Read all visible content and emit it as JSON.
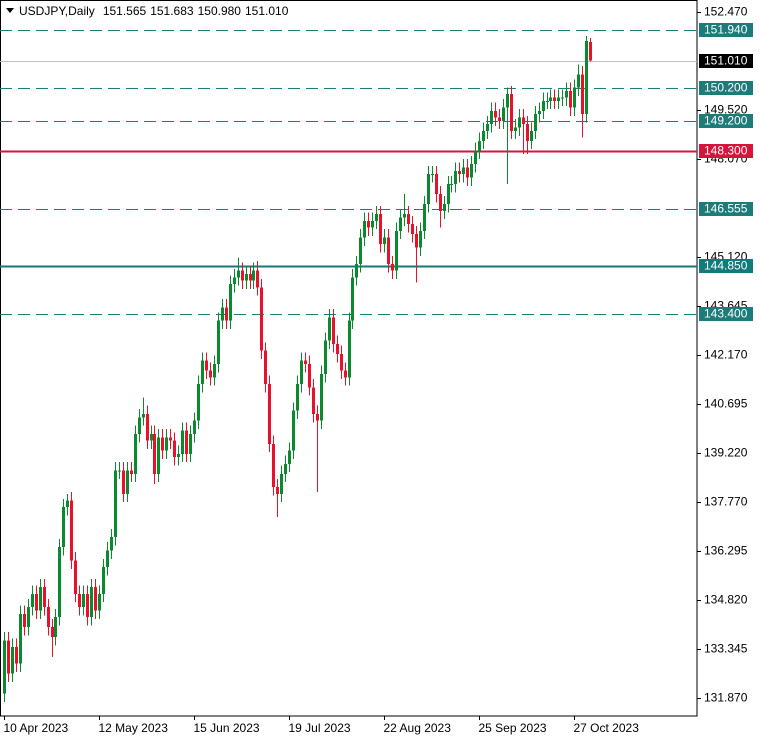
{
  "chart_data": {
    "type": "candlestick",
    "title": "USDJPY,Daily",
    "last_bar_labels": [
      "151.565",
      "151.683",
      "150.980",
      "151.010"
    ],
    "up_color": "#0a8a2e",
    "down_color": "#e8102a",
    "ylim": [
      131.33,
      152.83
    ],
    "yticks": [
      {
        "value": 152.47,
        "label": "152.470"
      },
      {
        "value": 149.52,
        "label": "149.520"
      },
      {
        "value": 148.07,
        "label": "148.070"
      },
      {
        "value": 145.12,
        "label": "145.120"
      },
      {
        "value": 143.645,
        "label": "143.645"
      },
      {
        "value": 142.17,
        "label": "142.170"
      },
      {
        "value": 140.695,
        "label": "140.695"
      },
      {
        "value": 139.22,
        "label": "139.220"
      },
      {
        "value": 137.77,
        "label": "137.770"
      },
      {
        "value": 136.295,
        "label": "136.295"
      },
      {
        "value": 134.82,
        "label": "134.820"
      },
      {
        "value": 133.345,
        "label": "133.345"
      },
      {
        "value": 131.87,
        "label": "131.870"
      }
    ],
    "levels": [
      {
        "value": 151.94,
        "label": "151.940",
        "style": "dashed",
        "color": "#1c7c7a"
      },
      {
        "value": 151.01,
        "label": "151.010",
        "style": "price",
        "color": "#000000"
      },
      {
        "value": 150.2,
        "label": "150.200",
        "style": "dashed",
        "color": "#1c7c7a"
      },
      {
        "value": 149.2,
        "label": "149.200",
        "style": "dashed",
        "color": "#1c7c7a"
      },
      {
        "value": 148.3,
        "label": "148.300",
        "style": "solid",
        "color": "#d4163c"
      },
      {
        "value": 146.555,
        "label": "146.555",
        "style": "dashed",
        "color": "#1c7c7a"
      },
      {
        "value": 144.85,
        "label": "144.850",
        "style": "solid",
        "color": "#117a7a"
      },
      {
        "value": 143.4,
        "label": "143.400",
        "style": "dashed",
        "color": "#1c7c7a"
      }
    ],
    "categories": [
      "10 Apr 2023",
      null,
      null,
      null,
      null,
      null,
      null,
      null,
      null,
      null,
      null,
      null,
      null,
      null,
      null,
      null,
      null,
      null,
      null,
      null,
      null,
      null,
      null,
      null,
      "12 May 2023",
      null,
      null,
      null,
      null,
      null,
      null,
      null,
      null,
      null,
      null,
      null,
      null,
      null,
      null,
      null,
      null,
      null,
      null,
      null,
      null,
      null,
      null,
      null,
      "15 Jun 2023",
      null,
      null,
      null,
      null,
      null,
      null,
      null,
      null,
      null,
      null,
      null,
      null,
      null,
      null,
      null,
      null,
      null,
      null,
      null,
      null,
      null,
      null,
      null,
      "19 Jul 2023",
      null,
      null,
      null,
      null,
      null,
      null,
      null,
      null,
      null,
      null,
      null,
      null,
      null,
      null,
      null,
      null,
      null,
      null,
      null,
      null,
      null,
      null,
      null,
      "22 Aug 2023",
      null,
      null,
      null,
      null,
      null,
      null,
      null,
      null,
      null,
      null,
      null,
      null,
      null,
      null,
      null,
      null,
      null,
      null,
      null,
      null,
      null,
      null,
      null,
      "25 Sep 2023",
      null,
      null,
      null,
      null,
      null,
      null,
      null,
      null,
      null,
      null,
      null,
      null,
      null,
      null,
      null,
      null,
      null,
      null,
      null,
      null,
      null,
      null,
      null,
      "27 Oct 2023",
      null,
      null,
      null,
      null
    ],
    "ohlc": [
      [
        132.0,
        133.85,
        131.75,
        133.6
      ],
      [
        133.6,
        133.85,
        132.35,
        132.6
      ],
      [
        132.6,
        133.65,
        132.35,
        133.4
      ],
      [
        133.4,
        133.65,
        132.65,
        132.9
      ],
      [
        132.9,
        134.65,
        132.65,
        134.4
      ],
      [
        134.4,
        134.65,
        133.75,
        134.0
      ],
      [
        134.0,
        134.85,
        133.75,
        134.6
      ],
      [
        134.6,
        135.25,
        134.35,
        135.0
      ],
      [
        135.0,
        135.25,
        134.25,
        134.5
      ],
      [
        134.5,
        135.45,
        134.25,
        135.2
      ],
      [
        135.2,
        135.45,
        134.35,
        134.6
      ],
      [
        134.6,
        134.85,
        133.75,
        134.0
      ],
      [
        134.0,
        134.25,
        133.1,
        133.7
      ],
      [
        133.7,
        134.55,
        133.45,
        134.3
      ],
      [
        134.3,
        136.65,
        134.05,
        136.4
      ],
      [
        136.4,
        137.85,
        136.15,
        137.6
      ],
      [
        137.6,
        138.0,
        137.35,
        137.8
      ],
      [
        137.8,
        138.05,
        135.75,
        136.0
      ],
      [
        136.0,
        136.25,
        134.75,
        135.0
      ],
      [
        135.0,
        135.25,
        134.35,
        134.6
      ],
      [
        134.6,
        135.25,
        134.35,
        135.0
      ],
      [
        135.0,
        135.25,
        134.05,
        134.3
      ],
      [
        134.3,
        135.45,
        134.05,
        135.2
      ],
      [
        135.2,
        135.45,
        134.25,
        134.5
      ],
      [
        134.5,
        135.25,
        134.25,
        135.0
      ],
      [
        135.0,
        136.05,
        134.75,
        135.8
      ],
      [
        135.8,
        136.55,
        135.55,
        136.3
      ],
      [
        136.3,
        136.95,
        136.05,
        136.7
      ],
      [
        136.7,
        138.95,
        136.45,
        138.7
      ],
      [
        138.7,
        138.95,
        138.45,
        138.7
      ],
      [
        138.7,
        138.95,
        137.75,
        138.0
      ],
      [
        138.0,
        138.95,
        137.75,
        138.7
      ],
      [
        138.7,
        138.95,
        138.35,
        138.6
      ],
      [
        138.6,
        140.05,
        138.35,
        139.8
      ],
      [
        139.8,
        140.55,
        139.55,
        140.3
      ],
      [
        140.3,
        140.9,
        140.05,
        140.4
      ],
      [
        140.4,
        140.65,
        139.35,
        139.6
      ],
      [
        139.6,
        140.05,
        139.35,
        139.8
      ],
      [
        139.8,
        140.05,
        138.3,
        138.6
      ],
      [
        138.6,
        139.95,
        138.35,
        139.7
      ],
      [
        139.7,
        139.95,
        139.05,
        139.3
      ],
      [
        139.3,
        139.95,
        139.05,
        139.7
      ],
      [
        139.7,
        139.95,
        139.35,
        139.6
      ],
      [
        139.6,
        139.85,
        138.85,
        139.1
      ],
      [
        139.1,
        139.45,
        138.85,
        139.2
      ],
      [
        139.2,
        140.15,
        138.95,
        139.9
      ],
      [
        139.9,
        140.15,
        138.95,
        139.2
      ],
      [
        139.2,
        140.05,
        138.95,
        139.8
      ],
      [
        139.8,
        140.45,
        139.55,
        140.2
      ],
      [
        140.2,
        141.55,
        139.95,
        141.3
      ],
      [
        141.3,
        142.25,
        141.05,
        142.0
      ],
      [
        142.0,
        142.25,
        141.45,
        141.7
      ],
      [
        141.7,
        141.95,
        141.25,
        141.5
      ],
      [
        141.5,
        142.15,
        141.25,
        141.9
      ],
      [
        141.9,
        143.45,
        141.65,
        143.2
      ],
      [
        143.2,
        143.85,
        142.95,
        143.6
      ],
      [
        143.6,
        143.85,
        142.95,
        143.2
      ],
      [
        143.2,
        144.55,
        142.95,
        144.3
      ],
      [
        144.3,
        144.75,
        144.05,
        144.5
      ],
      [
        144.5,
        145.1,
        144.25,
        144.7
      ],
      [
        144.7,
        144.95,
        144.15,
        144.4
      ],
      [
        144.4,
        144.85,
        144.15,
        144.6
      ],
      [
        144.6,
        144.85,
        144.15,
        144.4
      ],
      [
        144.4,
        144.95,
        144.15,
        144.7
      ],
      [
        144.7,
        145.0,
        143.95,
        144.2
      ],
      [
        144.2,
        144.45,
        142.05,
        142.3
      ],
      [
        142.3,
        142.55,
        141.05,
        141.3
      ],
      [
        141.3,
        141.55,
        139.25,
        139.5
      ],
      [
        139.5,
        139.75,
        137.95,
        138.2
      ],
      [
        138.2,
        138.45,
        137.3,
        138.0
      ],
      [
        138.0,
        138.85,
        137.75,
        138.6
      ],
      [
        138.6,
        139.15,
        138.35,
        138.9
      ],
      [
        138.9,
        139.55,
        138.65,
        139.3
      ],
      [
        139.3,
        140.75,
        139.05,
        140.5
      ],
      [
        140.5,
        141.55,
        140.25,
        141.3
      ],
      [
        141.3,
        142.25,
        141.05,
        142.0
      ],
      [
        142.0,
        142.25,
        141.65,
        141.9
      ],
      [
        141.9,
        142.15,
        140.95,
        141.2
      ],
      [
        141.2,
        141.45,
        140.15,
        140.4
      ],
      [
        140.4,
        140.65,
        138.05,
        140.2
      ],
      [
        140.2,
        141.85,
        139.95,
        141.6
      ],
      [
        141.6,
        142.85,
        141.35,
        142.6
      ],
      [
        142.6,
        143.55,
        142.35,
        143.3
      ],
      [
        143.3,
        143.55,
        142.25,
        142.5
      ],
      [
        142.5,
        142.75,
        141.95,
        142.2
      ],
      [
        142.2,
        142.45,
        141.45,
        141.7
      ],
      [
        141.7,
        141.95,
        141.25,
        141.5
      ],
      [
        141.5,
        143.45,
        141.25,
        143.2
      ],
      [
        143.2,
        144.75,
        142.95,
        144.5
      ],
      [
        144.5,
        145.15,
        144.25,
        144.9
      ],
      [
        144.9,
        145.95,
        144.65,
        145.7
      ],
      [
        145.7,
        146.45,
        145.45,
        146.2
      ],
      [
        146.2,
        146.45,
        145.75,
        146.0
      ],
      [
        146.0,
        146.45,
        145.75,
        146.2
      ],
      [
        146.2,
        146.65,
        145.95,
        146.4
      ],
      [
        146.4,
        146.65,
        145.25,
        145.5
      ],
      [
        145.5,
        145.95,
        145.25,
        145.7
      ],
      [
        145.7,
        145.95,
        144.65,
        144.9
      ],
      [
        144.9,
        145.15,
        144.45,
        144.7
      ],
      [
        144.7,
        146.15,
        144.45,
        145.9
      ],
      [
        145.9,
        146.55,
        145.65,
        146.3
      ],
      [
        146.3,
        147.0,
        146.05,
        146.4
      ],
      [
        146.4,
        146.65,
        145.85,
        146.1
      ],
      [
        146.1,
        146.35,
        145.55,
        145.8
      ],
      [
        145.8,
        146.05,
        144.35,
        145.4
      ],
      [
        145.4,
        146.15,
        145.15,
        145.9
      ],
      [
        145.9,
        146.95,
        145.65,
        146.7
      ],
      [
        146.7,
        147.85,
        146.45,
        147.6
      ],
      [
        147.6,
        147.85,
        147.35,
        147.6
      ],
      [
        147.6,
        147.85,
        146.75,
        147.0
      ],
      [
        147.0,
        147.25,
        146.0,
        146.5
      ],
      [
        146.5,
        146.95,
        146.25,
        146.7
      ],
      [
        146.7,
        147.55,
        146.45,
        147.3
      ],
      [
        147.3,
        147.55,
        147.05,
        147.3
      ],
      [
        147.3,
        147.95,
        147.05,
        147.7
      ],
      [
        147.7,
        147.95,
        147.35,
        147.6
      ],
      [
        147.6,
        148.05,
        147.35,
        147.8
      ],
      [
        147.8,
        148.05,
        147.25,
        147.5
      ],
      [
        147.5,
        148.15,
        147.25,
        147.9
      ],
      [
        147.9,
        148.55,
        147.65,
        148.3
      ],
      [
        148.3,
        148.85,
        148.05,
        148.6
      ],
      [
        148.6,
        149.15,
        148.35,
        148.9
      ],
      [
        148.9,
        149.35,
        148.65,
        149.1
      ],
      [
        149.1,
        149.75,
        148.85,
        149.5
      ],
      [
        149.5,
        149.75,
        149.05,
        149.3
      ],
      [
        149.3,
        149.55,
        148.95,
        149.2
      ],
      [
        149.2,
        149.85,
        148.95,
        149.6
      ],
      [
        149.6,
        150.2,
        147.3,
        150.0
      ],
      [
        150.0,
        150.25,
        148.65,
        148.9
      ],
      [
        148.9,
        149.25,
        148.65,
        149.0
      ],
      [
        149.0,
        149.55,
        148.75,
        149.3
      ],
      [
        149.3,
        149.55,
        148.2,
        149.1
      ],
      [
        149.1,
        149.35,
        148.2,
        148.6
      ],
      [
        148.6,
        149.15,
        148.35,
        148.9
      ],
      [
        148.9,
        149.65,
        148.65,
        149.4
      ],
      [
        149.4,
        149.75,
        149.15,
        149.5
      ],
      [
        149.5,
        150.05,
        149.25,
        149.8
      ],
      [
        149.8,
        150.05,
        149.55,
        149.8
      ],
      [
        149.8,
        150.15,
        149.55,
        149.9
      ],
      [
        149.9,
        150.15,
        149.55,
        149.8
      ],
      [
        149.8,
        150.15,
        149.55,
        149.9
      ],
      [
        149.9,
        150.15,
        149.65,
        149.9
      ],
      [
        149.9,
        150.35,
        149.65,
        150.1
      ],
      [
        150.1,
        150.35,
        149.35,
        149.6
      ],
      [
        149.6,
        150.45,
        149.35,
        150.2
      ],
      [
        150.2,
        150.9,
        149.95,
        150.6
      ],
      [
        150.6,
        150.85,
        148.7,
        149.4
      ],
      [
        149.4,
        151.75,
        149.15,
        151.6
      ],
      [
        151.565,
        151.683,
        150.98,
        151.01
      ]
    ]
  }
}
